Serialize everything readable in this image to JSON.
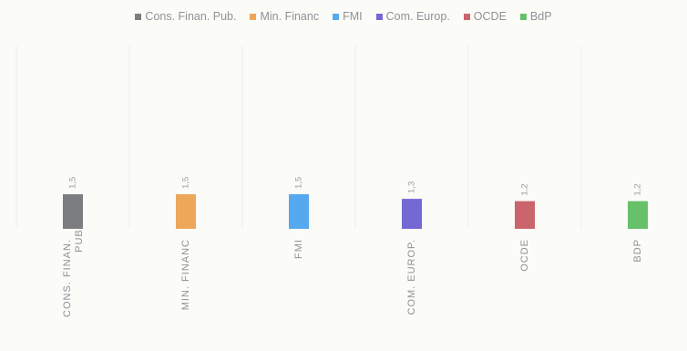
{
  "chart_data": {
    "type": "bar",
    "categories": [
      "CONS. FINAN. PUB.",
      "MIN. FINANC",
      "FMI",
      "COM. EUROP.",
      "OCDE",
      "BDP"
    ],
    "values": [
      1.5,
      1.5,
      1.5,
      1.3,
      1.2,
      1.2
    ],
    "value_labels": [
      "1,5",
      "1,5",
      "1,5",
      "1,3",
      "1,2",
      "1,2"
    ],
    "legend_entries": [
      "Cons. Finan. Pub.",
      "Min. Financ",
      "FMI",
      "Com. Europ.",
      "OCDE",
      "BdP"
    ],
    "colors": [
      "#7c7d80",
      "#eda75a",
      "#56a9ee",
      "#7468d4",
      "#c9656b",
      "#67c16a"
    ],
    "title": "",
    "xlabel": "",
    "ylabel": "",
    "ylim": [
      0,
      1.5
    ],
    "legend_position": "top",
    "grid": false
  }
}
